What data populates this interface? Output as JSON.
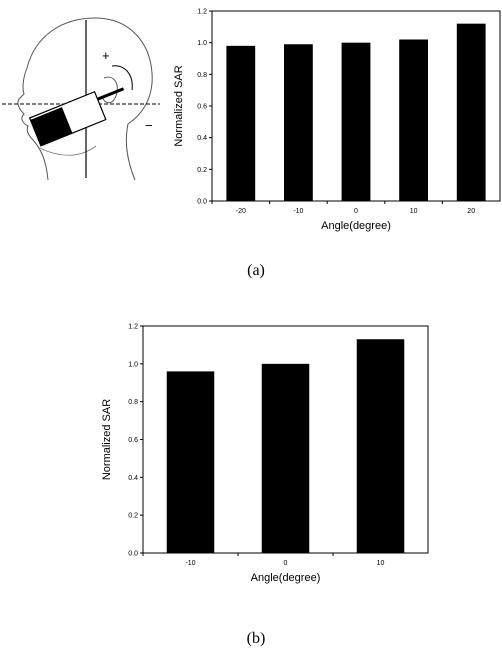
{
  "figure": {
    "head": {
      "plus_label": "+",
      "minus_label": "−"
    },
    "caption_a": "(a)",
    "caption_b": "(b)"
  },
  "chart_data": [
    {
      "type": "bar",
      "categories": [
        "-20",
        "-10",
        "0",
        "10",
        "20"
      ],
      "values": [
        0.98,
        0.99,
        1.0,
        1.02,
        1.12
      ],
      "xlabel": "Angle(degree)",
      "ylabel": "Normalized SAR",
      "ylim": [
        0,
        1.2
      ],
      "yticks": [
        "0.0",
        "0.2",
        "0.4",
        "0.6",
        "0.8",
        "1.0",
        "1.2"
      ],
      "bar_color": "#000000",
      "grid": false
    },
    {
      "type": "bar",
      "categories": [
        "-10",
        "0",
        "10"
      ],
      "values": [
        0.96,
        1.0,
        1.13
      ],
      "xlabel": "Angle(degree)",
      "ylabel": "Normalized SAR",
      "ylim": [
        0,
        1.2
      ],
      "yticks": [
        "0.0",
        "0.2",
        "0.4",
        "0.6",
        "0.8",
        "1.0",
        "1.2"
      ],
      "bar_color": "#000000",
      "grid": false
    }
  ]
}
